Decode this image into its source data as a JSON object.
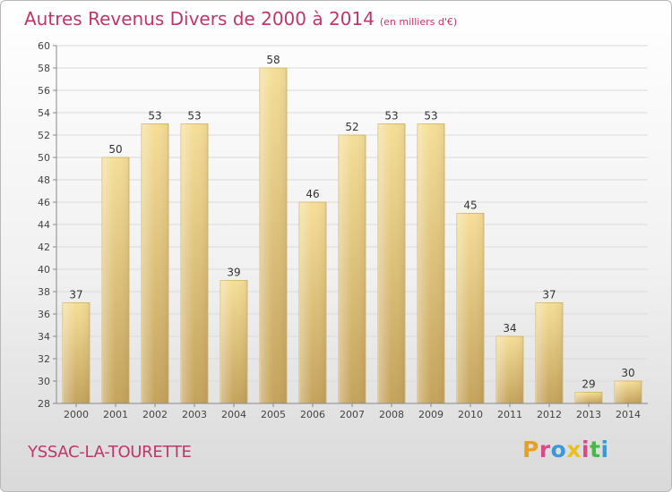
{
  "header": {
    "title": "Autres Revenus Divers de 2000 à 2014",
    "unit": "(en milliers d'€)"
  },
  "footer": {
    "commune": "YSSAC-LA-TOURETTE",
    "logo": {
      "text": "Proxiti",
      "letter_colors": [
        "#e8a020",
        "#d84a8a",
        "#3a9ad8",
        "#e8c020",
        "#d84a8a",
        "#48b848",
        "#3a9ad8"
      ]
    }
  },
  "chart_data": {
    "type": "bar",
    "categories": [
      "2000",
      "2001",
      "2002",
      "2003",
      "2004",
      "2005",
      "2006",
      "2007",
      "2008",
      "2009",
      "2010",
      "2011",
      "2012",
      "2013",
      "2014"
    ],
    "values": [
      37,
      50,
      53,
      53,
      39,
      58,
      46,
      52,
      53,
      53,
      45,
      34,
      37,
      29,
      30
    ],
    "ylim": [
      28,
      60
    ],
    "yticks": [
      28,
      30,
      32,
      34,
      36,
      38,
      40,
      42,
      44,
      46,
      48,
      50,
      52,
      54,
      56,
      58,
      60
    ],
    "grid": true,
    "bar_color": "#e9cd7d"
  }
}
